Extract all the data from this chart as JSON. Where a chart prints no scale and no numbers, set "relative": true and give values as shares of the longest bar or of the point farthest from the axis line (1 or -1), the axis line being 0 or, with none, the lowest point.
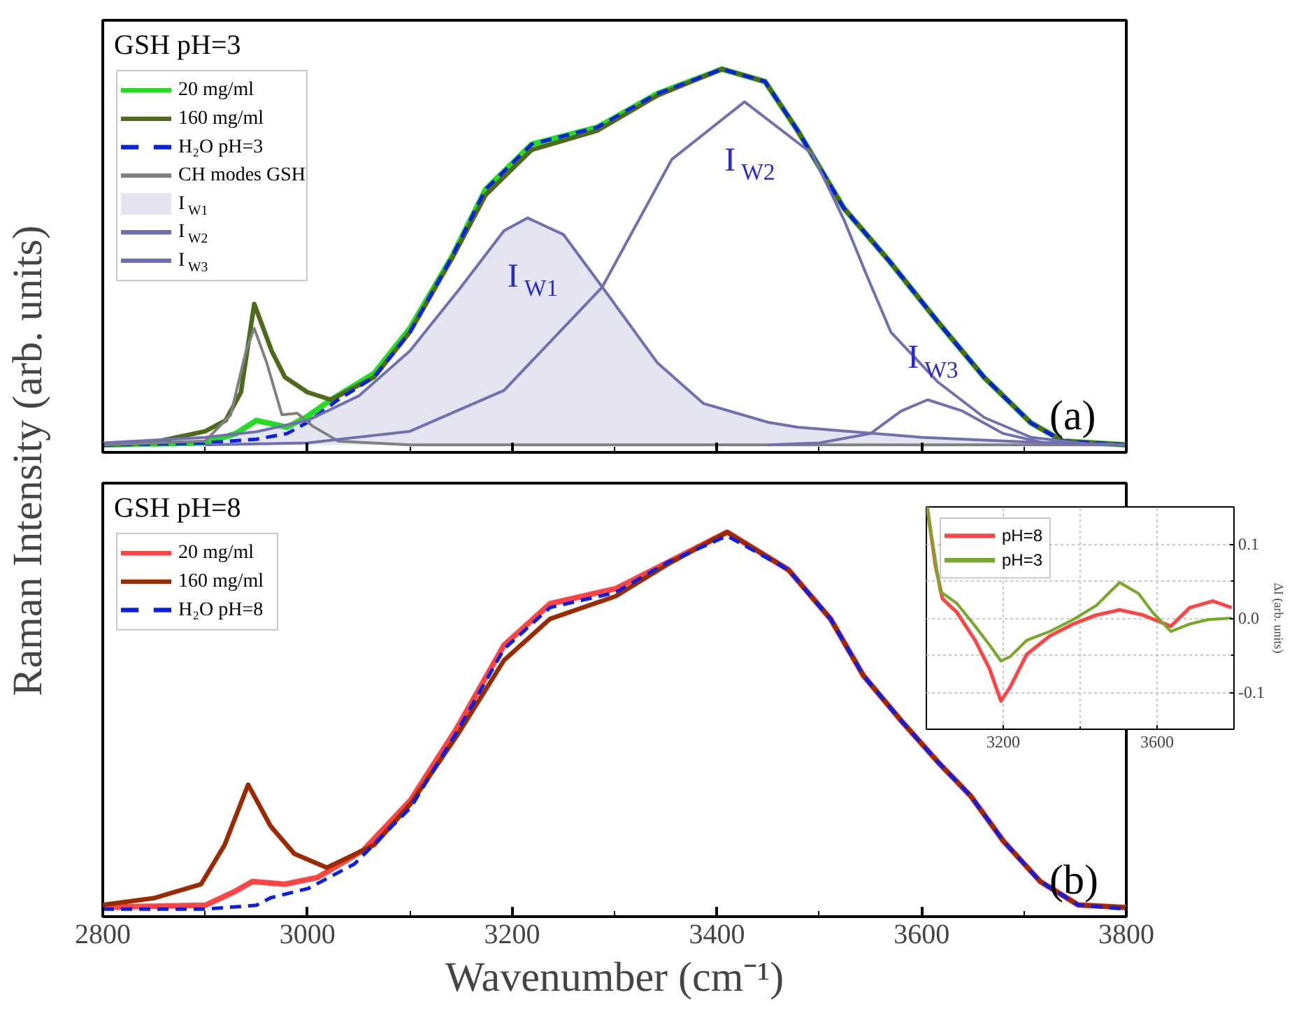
{
  "chart_data": [
    {
      "type": "line",
      "title": "GSH pH=3",
      "ylabel": "Raman Intensity (arb. units)",
      "relative": true,
      "xlim": [
        2800,
        3800
      ],
      "xticks": [
        2800,
        {
          "value": 2900,
          "label": null
        },
        3000,
        {
          "value": 3100,
          "label": null
        },
        3200,
        {
          "value": 3300,
          "label": null
        },
        3400,
        {
          "value": 3500,
          "label": null
        },
        3600,
        {
          "value": 3700,
          "label": null
        },
        3800
      ],
      "tick_labels": false,
      "legend": "top left",
      "annotations": [
        "(a)",
        {
          "text": "I$_{W1}$",
          "x": 3215,
          "y": 0.604
        },
        {
          "text": "I$_{W2}$",
          "x": 3427,
          "y": 0.913
        },
        {
          "text": "I$_{W3}$",
          "x": 3606,
          "y": 0.12
        }
      ],
      "series": [
        {
          "name": "20 mg/ml",
          "color": "#22dd22",
          "x": [
            2800,
            2900,
            2930,
            2950,
            2980,
            3000,
            3023,
            3065,
            3100,
            3141,
            3174,
            3219,
            3283,
            3342,
            3405,
            3447,
            3479,
            3524,
            3570,
            3616,
            3661,
            3707,
            3738,
            3800
          ],
          "values": [
            0,
            0.005,
            0.03,
            0.065,
            0.047,
            0.076,
            0.12,
            0.19,
            0.31,
            0.5,
            0.68,
            0.8,
            0.845,
            0.935,
            1.0,
            0.967,
            0.836,
            0.63,
            0.484,
            0.327,
            0.18,
            0.058,
            0.01,
            0
          ]
        },
        {
          "name": "160 mg/ml",
          "color": "#4e6b1c",
          "x": [
            2800,
            2850,
            2900,
            2920,
            2935,
            2948,
            2965,
            2978,
            3000,
            3023,
            3065,
            3100,
            3141,
            3174,
            3219,
            3283,
            3342,
            3405,
            3447,
            3479,
            3524,
            3570,
            3616,
            3661,
            3707,
            3738,
            3800
          ],
          "values": [
            0,
            0.007,
            0.036,
            0.065,
            0.14,
            0.375,
            0.25,
            0.18,
            0.14,
            0.12,
            0.18,
            0.3,
            0.495,
            0.665,
            0.785,
            0.836,
            0.93,
            1.0,
            0.967,
            0.836,
            0.63,
            0.484,
            0.327,
            0.18,
            0.058,
            0.01,
            0
          ]
        },
        {
          "name": "H₂O pH=3",
          "color": "#0a1fe6",
          "line_style": "dashed",
          "x": [
            2800,
            2900,
            2950,
            2980,
            3000,
            3030,
            3065,
            3100,
            3141,
            3174,
            3219,
            3283,
            3342,
            3405,
            3447,
            3479,
            3524,
            3570,
            3616,
            3661,
            3707,
            3738,
            3800
          ],
          "values": [
            0,
            0.005,
            0.015,
            0.03,
            0.06,
            0.12,
            0.18,
            0.3,
            0.5,
            0.68,
            0.8,
            0.845,
            0.935,
            1.0,
            0.967,
            0.836,
            0.63,
            0.484,
            0.327,
            0.18,
            0.058,
            0.01,
            0
          ]
        },
        {
          "name": "CH modes GSH",
          "color": "#808080",
          "x": [
            2800,
            2900,
            2925,
            2940,
            2948,
            2960,
            2975,
            2990,
            3005,
            3030,
            3100,
            3800
          ],
          "values": [
            0,
            0.01,
            0.08,
            0.25,
            0.31,
            0.22,
            0.08,
            0.084,
            0.05,
            0.01,
            0,
            0
          ]
        },
        {
          "name": "I$_{W1}$",
          "type": "area",
          "color": "#7070b0",
          "x": [
            2800,
            2900,
            2950,
            3000,
            3050,
            3100,
            3150,
            3192,
            3215,
            3250,
            3288,
            3342,
            3387,
            3450,
            3479,
            3600,
            3700,
            3800
          ],
          "values": [
            0.005,
            0.02,
            0.035,
            0.065,
            0.13,
            0.25,
            0.42,
            0.57,
            0.604,
            0.56,
            0.42,
            0.218,
            0.11,
            0.06,
            0.047,
            0.02,
            0.008,
            0
          ]
        },
        {
          "name": "I$_{W2}$",
          "color": "#7070b0",
          "x": [
            2900,
            3000,
            3100,
            3192,
            3288,
            3356,
            3427,
            3493,
            3524,
            3547,
            3570,
            3616,
            3661,
            3707,
            3760,
            3800
          ],
          "values": [
            0,
            0.005,
            0.036,
            0.145,
            0.42,
            0.76,
            0.913,
            0.775,
            0.6,
            0.447,
            0.3,
            0.167,
            0.073,
            0.02,
            0.003,
            0
          ]
        },
        {
          "name": "I$_{W3}$",
          "color": "#7070b0",
          "x": [
            3450,
            3500,
            3550,
            3580,
            3606,
            3640,
            3680,
            3720,
            3800
          ],
          "values": [
            0,
            0.005,
            0.03,
            0.09,
            0.12,
            0.09,
            0.03,
            0.005,
            0
          ]
        }
      ]
    },
    {
      "type": "line",
      "title": "GSH pH=8",
      "xlabel": "Wavenumber (cm⁻¹)",
      "relative": true,
      "xlim": [
        2800,
        3800
      ],
      "xticks": [
        2800,
        {
          "value": 2900,
          "label": null
        },
        3000,
        {
          "value": 3100,
          "label": null
        },
        3200,
        {
          "value": 3300,
          "label": null
        },
        3400,
        {
          "value": 3500,
          "label": null
        },
        3600,
        {
          "value": 3700,
          "label": null
        },
        3800
      ],
      "tick_labels": "x",
      "legend": "top left",
      "annotations": [
        "(b)"
      ],
      "series": [
        {
          "name": "20 mg/ml",
          "color": "#ff4444",
          "x": [
            2800,
            2900,
            2930,
            2946,
            2978,
            3010,
            3055,
            3101,
            3146,
            3192,
            3237,
            3301,
            3352,
            3410,
            3470,
            3511,
            3543,
            3580,
            3616,
            3648,
            3680,
            3716,
            3753,
            3800
          ],
          "values": [
            0.005,
            0.01,
            0.048,
            0.073,
            0.066,
            0.084,
            0.157,
            0.29,
            0.48,
            0.7,
            0.81,
            0.85,
            0.92,
            1.0,
            0.9,
            0.77,
            0.62,
            0.5,
            0.39,
            0.3,
            0.18,
            0.073,
            0.011,
            0.004
          ]
        },
        {
          "name": "160 mg/ml",
          "color": "#9b2a00",
          "x": [
            2800,
            2850,
            2896,
            2919,
            2942,
            2964,
            2987,
            3019,
            3065,
            3101,
            3146,
            3192,
            3237,
            3301,
            3352,
            3410,
            3470,
            3511,
            3543,
            3580,
            3616,
            3648,
            3680,
            3716,
            3753,
            3800
          ],
          "values": [
            0.011,
            0.029,
            0.066,
            0.17,
            0.33,
            0.22,
            0.147,
            0.11,
            0.17,
            0.28,
            0.46,
            0.66,
            0.77,
            0.83,
            0.915,
            1.0,
            0.9,
            0.77,
            0.62,
            0.5,
            0.39,
            0.3,
            0.18,
            0.073,
            0.011,
            0.004
          ]
        },
        {
          "name": "H₂O pH=8",
          "color": "#0a1fe6",
          "line_style": "dashed",
          "x": [
            2800,
            2900,
            2950,
            2964,
            3001,
            3046,
            3101,
            3146,
            3192,
            3237,
            3301,
            3352,
            3410,
            3470,
            3511,
            3543,
            3580,
            3616,
            3648,
            3680,
            3716,
            3753,
            3800
          ],
          "values": [
            0,
            0,
            0.01,
            0.03,
            0.055,
            0.12,
            0.27,
            0.47,
            0.69,
            0.8,
            0.84,
            0.92,
            0.99,
            0.9,
            0.77,
            0.62,
            0.5,
            0.39,
            0.3,
            0.18,
            0.073,
            0.011,
            0
          ]
        }
      ]
    },
    {
      "type": "line",
      "ylabel": "ΔI (arb. units)",
      "xlim": [
        3000,
        3800
      ],
      "ylim": [
        -0.15,
        0.15
      ],
      "xticks": [
        3200,
        {
          "value": 3400,
          "label": null
        },
        3600
      ],
      "yticks": [
        -0.1,
        {
          "value": -0.05,
          "label": null
        },
        {
          "value": 0,
          "label": "0.0"
        },
        {
          "value": 0.05,
          "label": null
        },
        0.1
      ],
      "grid": true,
      "legend": "top left",
      "series": [
        {
          "name": "pH=8",
          "color": "#ff4444",
          "x": [
            3002,
            3024,
            3042,
            3079,
            3127,
            3164,
            3194,
            3218,
            3261,
            3321,
            3382,
            3442,
            3503,
            3564,
            3636,
            3685,
            3745,
            3794
          ],
          "values": [
            0.15,
            0.07,
            0.026,
            0.008,
            -0.03,
            -0.068,
            -0.112,
            -0.093,
            -0.049,
            -0.024,
            -0.008,
            0.004,
            0.011,
            0.004,
            -0.011,
            0.014,
            0.023,
            0.014
          ]
        },
        {
          "name": "pH=3",
          "color": "#77a82a",
          "x": [
            3002,
            3024,
            3036,
            3079,
            3127,
            3164,
            3194,
            3218,
            3261,
            3321,
            3382,
            3442,
            3479,
            3503,
            3552,
            3588,
            3636,
            3685,
            3733,
            3794
          ],
          "values": [
            0.15,
            0.076,
            0.036,
            0.02,
            -0.011,
            -0.036,
            -0.058,
            -0.052,
            -0.03,
            -0.018,
            -0.002,
            0.017,
            0.036,
            0.048,
            0.033,
            0.008,
            -0.018,
            -0.008,
            -0.002,
            0
          ]
        }
      ]
    }
  ]
}
